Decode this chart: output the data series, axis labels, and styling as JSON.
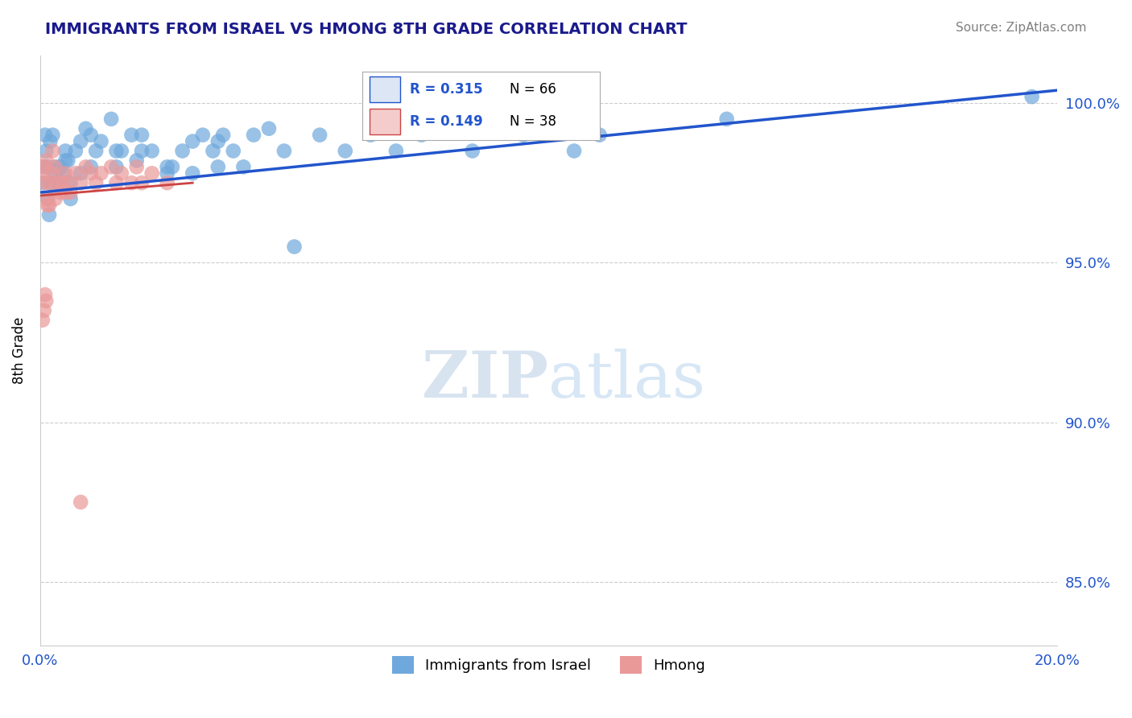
{
  "title": "IMMIGRANTS FROM ISRAEL VS HMONG 8TH GRADE CORRELATION CHART",
  "source_text": "Source: ZipAtlas.com",
  "ylabel": "8th Grade",
  "x_min": 0.0,
  "x_max": 20.0,
  "y_min": 83.0,
  "y_max": 101.5,
  "x_ticks": [
    0.0,
    5.0,
    10.0,
    15.0,
    20.0
  ],
  "x_tick_labels": [
    "0.0%",
    "",
    "",
    "",
    "20.0%"
  ],
  "y_ticks": [
    85.0,
    90.0,
    95.0,
    100.0
  ],
  "y_tick_labels": [
    "85.0%",
    "90.0%",
    "95.0%",
    "100.0%"
  ],
  "israel_color": "#6fa8dc",
  "hmong_color": "#ea9999",
  "israel_line_color": "#2255cc",
  "hmong_line_color": "#cc4444",
  "israel_R": 0.315,
  "israel_N": 66,
  "hmong_R": 0.149,
  "hmong_N": 38,
  "background_color": "#ffffff",
  "grid_color": "#cccccc",
  "title_color": "#1a1a8c",
  "axis_color": "#2255cc",
  "watermark_zip": "ZIP",
  "watermark_atlas": "atlas",
  "legend_box_color": "#dce6f4",
  "legend_box2_color": "#f4cccc",
  "israel_line_x": [
    0.0,
    20.0
  ],
  "israel_line_y": [
    97.2,
    100.4
  ],
  "hmong_line_x": [
    0.0,
    3.0
  ],
  "hmong_line_y": [
    97.1,
    97.5
  ],
  "israel_x": [
    0.05,
    0.08,
    0.1,
    0.12,
    0.15,
    0.18,
    0.2,
    0.25,
    0.3,
    0.35,
    0.4,
    0.45,
    0.5,
    0.55,
    0.6,
    0.7,
    0.8,
    0.9,
    1.0,
    1.1,
    1.2,
    1.4,
    1.5,
    1.6,
    1.8,
    1.9,
    2.0,
    2.2,
    2.5,
    2.6,
    2.8,
    3.0,
    3.2,
    3.4,
    3.5,
    3.6,
    3.8,
    4.0,
    4.2,
    4.5,
    4.8,
    5.0,
    5.5,
    6.0,
    6.5,
    7.0,
    7.5,
    8.5,
    9.0,
    9.5,
    10.5,
    11.0,
    13.5,
    0.15,
    0.2,
    0.3,
    0.5,
    0.6,
    0.8,
    1.0,
    1.5,
    2.0,
    2.5,
    3.0,
    3.5,
    19.5
  ],
  "israel_y": [
    97.5,
    98.0,
    99.0,
    98.5,
    97.0,
    96.5,
    98.8,
    99.0,
    98.0,
    97.5,
    98.0,
    97.8,
    98.5,
    98.2,
    97.0,
    98.5,
    98.8,
    99.2,
    99.0,
    98.5,
    98.8,
    99.5,
    98.0,
    98.5,
    99.0,
    98.2,
    99.0,
    98.5,
    97.8,
    98.0,
    98.5,
    98.8,
    99.0,
    98.5,
    98.8,
    99.0,
    98.5,
    98.0,
    99.0,
    99.2,
    98.5,
    95.5,
    99.0,
    98.5,
    99.0,
    98.5,
    99.0,
    98.5,
    99.2,
    99.0,
    98.5,
    99.0,
    99.5,
    98.0,
    97.5,
    97.8,
    98.2,
    97.5,
    97.8,
    98.0,
    98.5,
    98.5,
    98.0,
    97.8,
    98.0,
    100.2
  ],
  "hmong_x": [
    0.05,
    0.08,
    0.1,
    0.12,
    0.15,
    0.18,
    0.2,
    0.25,
    0.3,
    0.35,
    0.4,
    0.45,
    0.5,
    0.55,
    0.6,
    0.7,
    0.8,
    0.9,
    1.0,
    1.1,
    1.2,
    1.4,
    1.5,
    1.6,
    1.8,
    1.9,
    2.0,
    2.2,
    2.5,
    0.05,
    0.08,
    0.1,
    0.12,
    0.15,
    0.25,
    0.3,
    0.5,
    0.8
  ],
  "hmong_y": [
    97.8,
    98.0,
    97.5,
    98.2,
    97.0,
    96.8,
    97.5,
    97.8,
    98.0,
    97.5,
    97.2,
    97.5,
    97.8,
    97.5,
    97.2,
    97.8,
    97.5,
    98.0,
    97.8,
    97.5,
    97.8,
    98.0,
    97.5,
    97.8,
    97.5,
    98.0,
    97.5,
    97.8,
    97.5,
    93.2,
    93.5,
    94.0,
    93.8,
    96.8,
    98.5,
    97.0,
    97.2,
    87.5
  ]
}
